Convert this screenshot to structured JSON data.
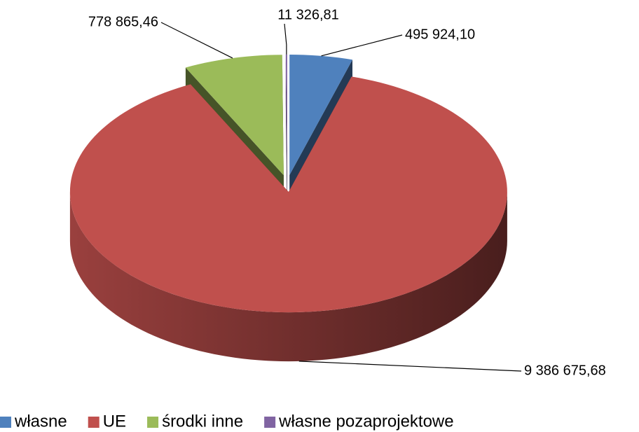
{
  "chart_data": {
    "type": "pie",
    "categories": [
      "własne",
      "UE",
      "środki inne",
      "własne pozaprojektowe"
    ],
    "values": [
      495924.1,
      9386675.68,
      778865.46,
      11326.81
    ],
    "value_labels": [
      "495 924,10",
      "9 386 675,68",
      "778 865,46",
      "11 326,81"
    ],
    "colors": [
      "#4f81bd",
      "#c0504d",
      "#9bbb59",
      "#8064a2"
    ],
    "legend": "bottom"
  }
}
